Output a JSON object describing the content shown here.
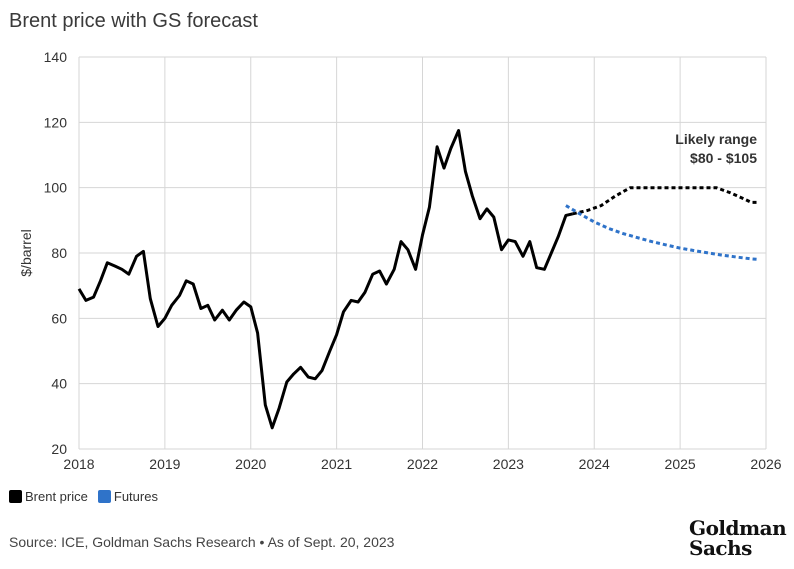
{
  "title": "Brent price with GS forecast",
  "legend": [
    {
      "label": "Brent price",
      "color": "#000000"
    },
    {
      "label": "Futures",
      "color": "#2f73c9"
    }
  ],
  "source": "Source: ICE, Goldman Sachs Research • As of Sept. 20, 2023",
  "logo": {
    "line1": "Goldman",
    "line2": "Sachs"
  },
  "annotation": {
    "line1": "Likely range",
    "line2": "$80 - $105"
  },
  "chart_data": {
    "type": "line",
    "title": "Brent price with GS forecast",
    "xlabel": "",
    "ylabel": "$/barrel",
    "xlim": [
      2018,
      2026
    ],
    "ylim": [
      20,
      140
    ],
    "yticks": [
      20,
      40,
      60,
      80,
      100,
      120,
      140
    ],
    "xticks": [
      2018,
      2019,
      2020,
      2021,
      2022,
      2023,
      2024,
      2025,
      2026
    ],
    "series": [
      {
        "name": "Brent price",
        "color": "#000000",
        "style": "solid",
        "points": [
          [
            2018.0,
            69
          ],
          [
            2018.08,
            65.5
          ],
          [
            2018.17,
            66.5
          ],
          [
            2018.25,
            71.5
          ],
          [
            2018.33,
            77
          ],
          [
            2018.42,
            76
          ],
          [
            2018.5,
            75
          ],
          [
            2018.58,
            73.5
          ],
          [
            2018.67,
            79
          ],
          [
            2018.75,
            80.5
          ],
          [
            2018.83,
            66
          ],
          [
            2018.92,
            57.5
          ],
          [
            2019.0,
            60
          ],
          [
            2019.08,
            64
          ],
          [
            2019.17,
            67
          ],
          [
            2019.25,
            71.5
          ],
          [
            2019.33,
            70.5
          ],
          [
            2019.42,
            63
          ],
          [
            2019.5,
            64
          ],
          [
            2019.58,
            59.5
          ],
          [
            2019.67,
            62.5
          ],
          [
            2019.75,
            59.5
          ],
          [
            2019.83,
            62.5
          ],
          [
            2019.92,
            65
          ],
          [
            2020.0,
            63.5
          ],
          [
            2020.08,
            55.5
          ],
          [
            2020.17,
            33.5
          ],
          [
            2020.25,
            26.5
          ],
          [
            2020.33,
            32.5
          ],
          [
            2020.42,
            40.5
          ],
          [
            2020.5,
            43
          ],
          [
            2020.58,
            45
          ],
          [
            2020.67,
            42
          ],
          [
            2020.75,
            41.5
          ],
          [
            2020.83,
            44
          ],
          [
            2020.92,
            50
          ],
          [
            2021.0,
            55
          ],
          [
            2021.08,
            62
          ],
          [
            2021.17,
            65.5
          ],
          [
            2021.25,
            65
          ],
          [
            2021.33,
            68
          ],
          [
            2021.42,
            73.5
          ],
          [
            2021.5,
            74.5
          ],
          [
            2021.58,
            70.5
          ],
          [
            2021.67,
            75
          ],
          [
            2021.75,
            83.5
          ],
          [
            2021.83,
            81
          ],
          [
            2021.92,
            75
          ],
          [
            2022.0,
            85.5
          ],
          [
            2022.08,
            94
          ],
          [
            2022.17,
            112.5
          ],
          [
            2022.25,
            106
          ],
          [
            2022.33,
            112
          ],
          [
            2022.42,
            117.5
          ],
          [
            2022.5,
            105
          ],
          [
            2022.58,
            97.5
          ],
          [
            2022.67,
            90.5
          ],
          [
            2022.75,
            93.5
          ],
          [
            2022.83,
            91
          ],
          [
            2022.92,
            81
          ],
          [
            2023.0,
            84
          ],
          [
            2023.08,
            83.5
          ],
          [
            2023.17,
            79
          ],
          [
            2023.25,
            83.5
          ],
          [
            2023.33,
            75.5
          ],
          [
            2023.42,
            75
          ],
          [
            2023.5,
            80
          ],
          [
            2023.58,
            85
          ],
          [
            2023.67,
            91.5
          ],
          [
            2023.75,
            92
          ]
        ]
      },
      {
        "name": "GS forecast",
        "color": "#000000",
        "style": "dotted",
        "points": [
          [
            2023.75,
            92
          ],
          [
            2023.92,
            93
          ],
          [
            2024.08,
            94.5
          ],
          [
            2024.25,
            97.5
          ],
          [
            2024.42,
            100
          ],
          [
            2024.58,
            100
          ],
          [
            2024.75,
            100
          ],
          [
            2024.92,
            100
          ],
          [
            2025.08,
            100
          ],
          [
            2025.25,
            100
          ],
          [
            2025.42,
            100
          ],
          [
            2025.58,
            98.5
          ],
          [
            2025.75,
            96.5
          ],
          [
            2025.83,
            95.5
          ],
          [
            2025.92,
            95.5
          ]
        ]
      },
      {
        "name": "Futures",
        "color": "#2f73c9",
        "style": "dotted",
        "points": [
          [
            2023.67,
            94.5
          ],
          [
            2023.83,
            92
          ],
          [
            2024.0,
            89.5
          ],
          [
            2024.17,
            87.5
          ],
          [
            2024.33,
            86
          ],
          [
            2024.5,
            84.7
          ],
          [
            2024.67,
            83.5
          ],
          [
            2024.83,
            82.5
          ],
          [
            2025.0,
            81.5
          ],
          [
            2025.17,
            80.7
          ],
          [
            2025.33,
            80
          ],
          [
            2025.5,
            79.3
          ],
          [
            2025.67,
            78.7
          ],
          [
            2025.83,
            78.2
          ],
          [
            2025.92,
            78
          ]
        ]
      }
    ]
  }
}
